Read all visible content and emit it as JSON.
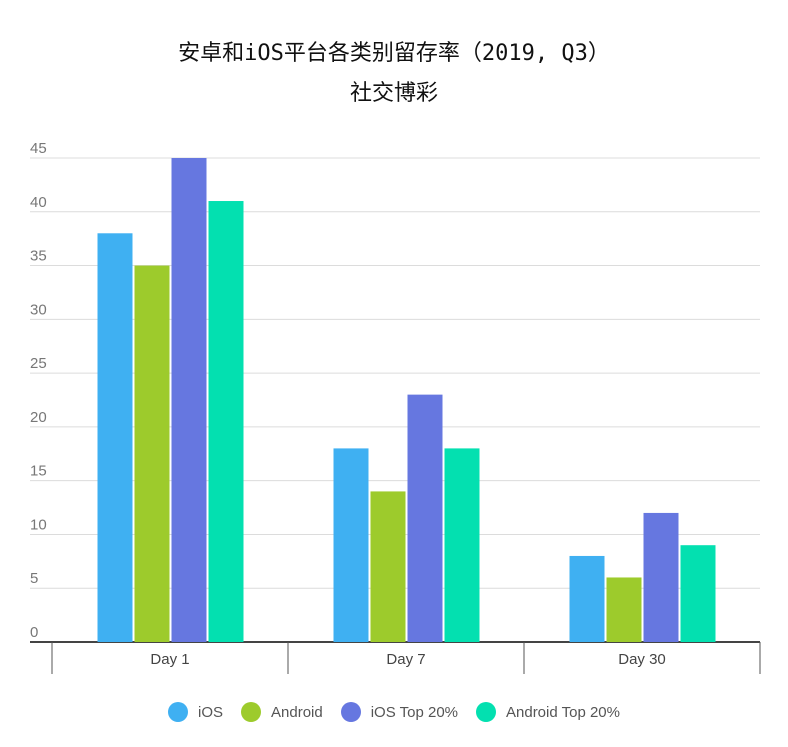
{
  "chart_data": {
    "type": "bar",
    "title": "安卓和iOS平台各类别留存率（2019, Q3）",
    "subtitle": "社交博彩",
    "categories": [
      "Day 1",
      "Day 7",
      "Day 30"
    ],
    "series": [
      {
        "name": "iOS",
        "color": "#3fb0f2",
        "values": [
          38,
          18,
          8
        ]
      },
      {
        "name": "Android",
        "color": "#9dcb2c",
        "values": [
          35,
          14,
          6
        ]
      },
      {
        "name": "iOS Top 20%",
        "color": "#6677e0",
        "values": [
          45,
          23,
          12
        ]
      },
      {
        "name": "Android Top 20%",
        "color": "#03e0b0",
        "values": [
          41,
          18,
          9
        ]
      }
    ],
    "ylim": [
      0,
      45
    ],
    "yticks": [
      0,
      5,
      10,
      15,
      20,
      25,
      30,
      35,
      40,
      45
    ],
    "grid": true,
    "legend_position": "bottom"
  }
}
